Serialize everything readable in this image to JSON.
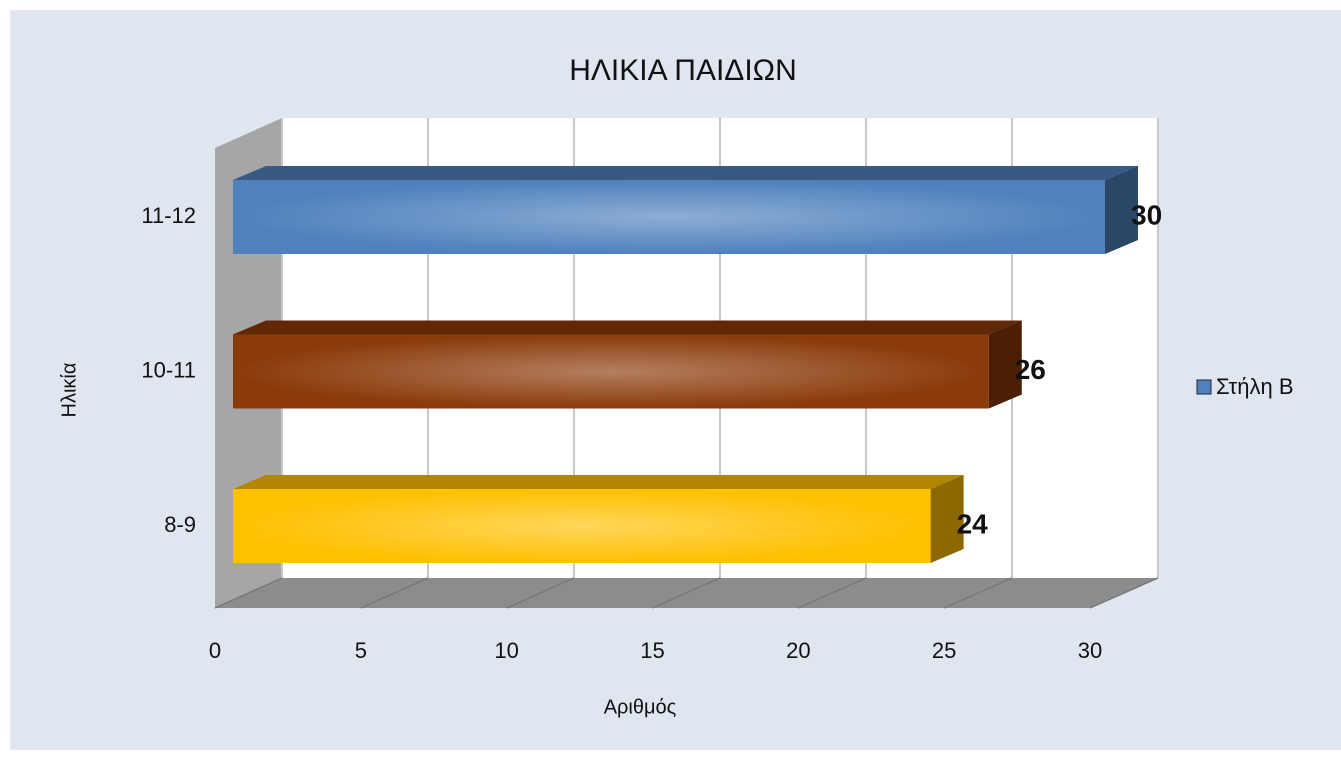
{
  "chart_data": {
    "type": "bar3d_horizontal",
    "title": "ΗΛΙΚΙΑ ΠΑΙΔΙΩΝ",
    "x_label": "Αριθμός",
    "y_label": "Ηλικία",
    "categories": [
      "8-9",
      "10-11",
      "11-12"
    ],
    "series": [
      {
        "name": "Στήλη Β",
        "color": "#4f81bd",
        "values": [
          24,
          26,
          30
        ]
      }
    ],
    "bar_colors": [
      "#ffc000",
      "#8b3a0a",
      "#4f81bd"
    ],
    "xlim": [
      0,
      30
    ],
    "xticks": [
      0,
      5,
      10,
      15,
      20,
      25,
      30
    ],
    "grid": true,
    "legend": "right"
  }
}
